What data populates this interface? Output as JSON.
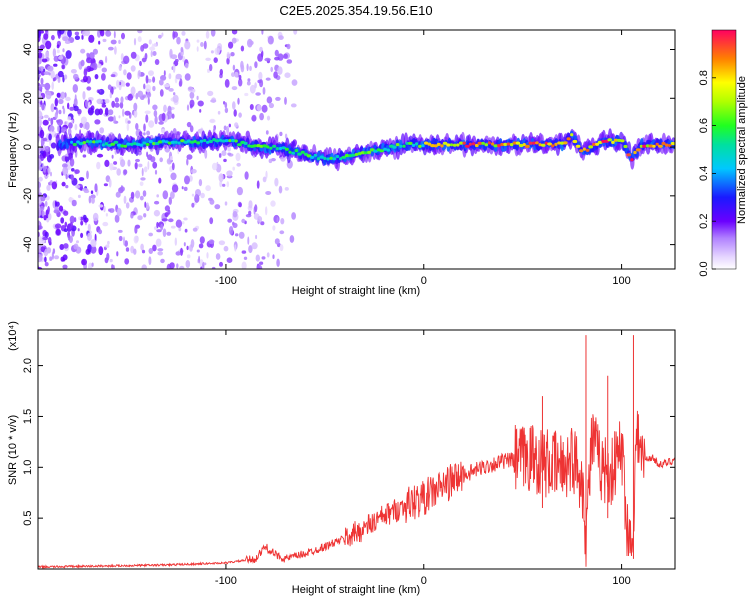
{
  "title": "C2E5.2025.354.19.56.E10",
  "chart_data": [
    {
      "type": "heatmap",
      "xlabel": "Height of straight line (km)",
      "ylabel": "Frequency (Hz)",
      "xlim": [
        -195,
        127
      ],
      "ylim": [
        -50,
        48
      ],
      "xticks": [
        -100,
        0,
        100
      ],
      "yticks": [
        -40,
        -20,
        0,
        20,
        40
      ],
      "colorbar": {
        "label": "Normalized spectral amplitude",
        "range": [
          0,
          1
        ],
        "ticks": [
          "0.0",
          "0.2",
          "0.4",
          "0.6",
          "0.8"
        ],
        "tick_values": [
          0.0,
          0.2,
          0.4,
          0.6,
          0.8
        ]
      },
      "ridge": {
        "x": [
          -185,
          -170,
          -150,
          -130,
          -110,
          -100,
          -90,
          -80,
          -70,
          -60,
          -50,
          -40,
          -30,
          -20,
          -10,
          0,
          20,
          40,
          60,
          70,
          75,
          80,
          90,
          100,
          105,
          110,
          127
        ],
        "frequency": [
          1,
          2,
          1,
          2,
          2,
          3,
          1,
          0,
          -1,
          -3,
          -5,
          -4,
          -2,
          -1,
          1,
          1,
          1,
          1,
          1,
          1,
          5,
          -2,
          2,
          3,
          -5,
          1,
          1
        ]
      }
    },
    {
      "type": "line",
      "xlabel": "Height of straight line (km)",
      "ylabel": "SNR (10 * v/v)",
      "y_multiplier": "(x10⁴)",
      "xlim": [
        -195,
        127
      ],
      "ylim": [
        0,
        2.35
      ],
      "xticks": [
        -100,
        0,
        100
      ],
      "yticks": [
        "0.5",
        "1.0",
        "1.5",
        "2.0"
      ],
      "ytick_values": [
        0.5,
        1.0,
        1.5,
        2.0
      ],
      "color": "#ee3333",
      "series": [
        {
          "x": [
            -195,
            -160,
            -130,
            -100,
            -85,
            -80,
            -75,
            -70,
            -60,
            -50,
            -40,
            -30,
            -20,
            -10,
            0,
            10,
            20,
            30,
            40,
            50,
            55,
            60,
            65,
            70,
            75,
            80,
            82,
            85,
            88,
            90,
            95,
            100,
            103,
            105,
            108,
            110,
            115,
            120,
            127
          ],
          "values": [
            0.02,
            0.03,
            0.04,
            0.06,
            0.1,
            0.22,
            0.14,
            0.1,
            0.15,
            0.22,
            0.3,
            0.4,
            0.52,
            0.62,
            0.7,
            0.82,
            0.92,
            1.0,
            1.06,
            1.08,
            1.1,
            1.05,
            1.02,
            1.0,
            1.1,
            0.9,
            0.35,
            1.3,
            1.1,
            1.0,
            0.95,
            1.2,
            0.4,
            0.2,
            1.4,
            1.05,
            1.1,
            1.02,
            1.08
          ],
          "spikes": [
            {
              "x": 82,
              "values": [
                0.1,
                2.3
              ]
            },
            {
              "x": 106,
              "values": [
                0.1,
                2.3
              ]
            },
            {
              "x": 60,
              "values": [
                0.6,
                1.7
              ]
            },
            {
              "x": 93,
              "values": [
                0.5,
                1.9
              ]
            }
          ]
        }
      ]
    }
  ]
}
